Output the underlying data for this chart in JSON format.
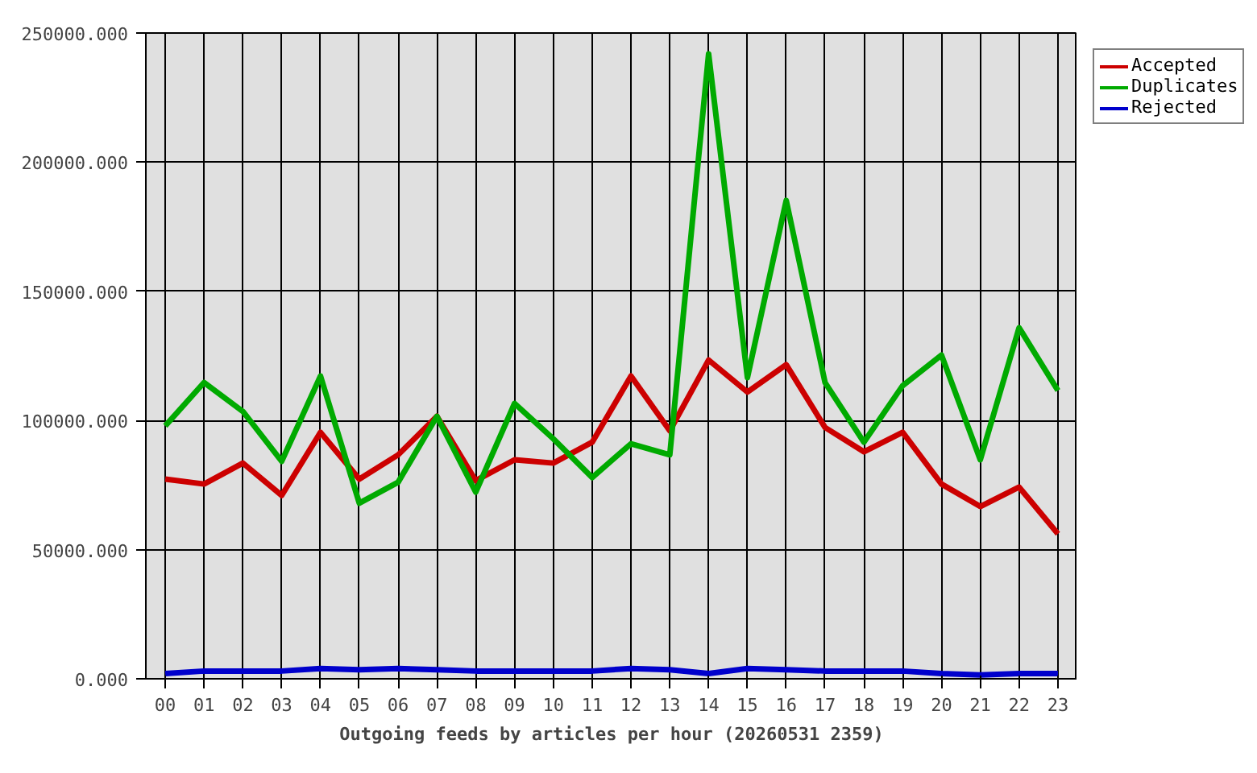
{
  "chart_data": {
    "type": "line",
    "xlabel": "Outgoing feeds by articles per hour (20260531 2359)",
    "categories": [
      "00",
      "01",
      "02",
      "03",
      "04",
      "05",
      "06",
      "07",
      "08",
      "09",
      "10",
      "11",
      "12",
      "13",
      "14",
      "15",
      "16",
      "17",
      "18",
      "19",
      "20",
      "21",
      "22",
      "23"
    ],
    "series": [
      {
        "name": "Accepted",
        "color": "#cc0000",
        "values": [
          77300,
          75400,
          83500,
          71000,
          95400,
          77300,
          86700,
          101600,
          76700,
          84800,
          83500,
          91600,
          117200,
          96000,
          123400,
          111000,
          121600,
          97300,
          87900,
          95400,
          75400,
          66700,
          74200,
          56100
        ]
      },
      {
        "name": "Duplicates",
        "color": "#00aa00",
        "values": [
          97900,
          114700,
          103500,
          84200,
          117200,
          68000,
          76100,
          101600,
          72300,
          106600,
          92900,
          77900,
          91000,
          86700,
          241900,
          116600,
          185200,
          114700,
          91600,
          113500,
          125300,
          84800,
          135900,
          111600
        ]
      },
      {
        "name": "Rejected",
        "color": "#0000cc",
        "values": [
          2000,
          3000,
          3000,
          3000,
          4000,
          3500,
          4000,
          3500,
          3000,
          3000,
          3000,
          3000,
          4000,
          3500,
          2000,
          4000,
          3500,
          3000,
          3000,
          3000,
          2000,
          1500,
          2000,
          2000
        ]
      }
    ],
    "ylim": [
      0,
      250000
    ],
    "yticks": [
      {
        "value": 0,
        "label": "0.000"
      },
      {
        "value": 50000,
        "label": "50000.000"
      },
      {
        "value": 100000,
        "label": "100000.000"
      },
      {
        "value": 150000,
        "label": "150000.000"
      },
      {
        "value": 200000,
        "label": "200000.000"
      },
      {
        "value": 250000,
        "label": "250000.000"
      }
    ],
    "grid": true,
    "legend": "top right"
  }
}
